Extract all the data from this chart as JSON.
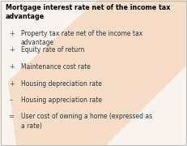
{
  "title": "Mortgage interest rate net of the income tax\nadvantage",
  "items": [
    {
      "symbol": "+",
      "text": "Property tax rate net of the income tax\nadvantage"
    },
    {
      "symbol": "+",
      "text": "Equity rate of return"
    },
    {
      "symbol": "+",
      "text": "Maintenance cost rate"
    },
    {
      "symbol": "+",
      "text": "Housing depreciation rate"
    },
    {
      "symbol": "–",
      "text": "Housing appreciation rate"
    },
    {
      "symbol": "=",
      "text": "User cost of owning a home (expressed as\na rate)"
    }
  ],
  "bg_color": "#f9f4ef",
  "stripe_color": "#f5ddc8",
  "border_color": "#bbbbbb",
  "title_fontsize": 5.8,
  "item_fontsize": 5.5,
  "symbol_fontsize": 5.8,
  "title_color": "#000000",
  "text_color": "#333333",
  "symbol_color": "#555555"
}
